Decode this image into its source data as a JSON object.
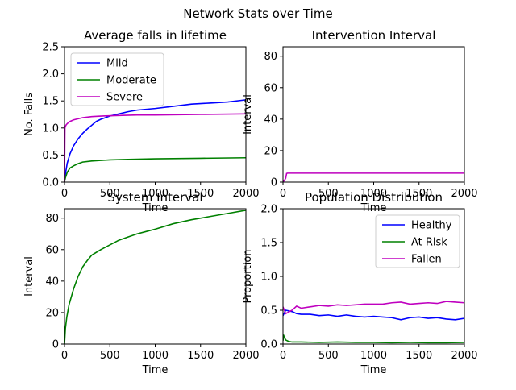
{
  "figure": {
    "title": "Network Stats over Time",
    "colors": {
      "mild": "#0000ff",
      "moderate": "#008000",
      "severe": "#bf00bf"
    }
  },
  "chart_data": [
    {
      "id": "falls",
      "type": "line",
      "title": "Average falls in lifetime",
      "xlabel": "Time",
      "ylabel": "No. Falls",
      "xlim": [
        0,
        2000
      ],
      "ylim": [
        0,
        2.5
      ],
      "xticks": [
        0,
        500,
        1000,
        1500,
        2000
      ],
      "yticks": [
        0.0,
        0.5,
        1.0,
        1.5,
        2.0,
        2.5
      ],
      "ytick_labels": [
        "0.0",
        "0.5",
        "1.0",
        "1.5",
        "2.0",
        "2.5"
      ],
      "legend": "top-left",
      "series": [
        {
          "name": "Mild",
          "color": "#0000ff",
          "x": [
            0,
            10,
            30,
            60,
            100,
            150,
            200,
            250,
            300,
            350,
            400,
            500,
            600,
            700,
            800,
            1000,
            1200,
            1400,
            1600,
            1800,
            2000
          ],
          "y": [
            0.0,
            0.15,
            0.35,
            0.52,
            0.67,
            0.8,
            0.9,
            0.98,
            1.05,
            1.12,
            1.16,
            1.22,
            1.26,
            1.3,
            1.33,
            1.36,
            1.4,
            1.44,
            1.46,
            1.48,
            1.52
          ]
        },
        {
          "name": "Moderate",
          "color": "#008000",
          "x": [
            0,
            10,
            30,
            60,
            100,
            150,
            200,
            300,
            400,
            500,
            700,
            1000,
            1500,
            2000
          ],
          "y": [
            0.0,
            0.08,
            0.18,
            0.26,
            0.3,
            0.34,
            0.37,
            0.39,
            0.4,
            0.41,
            0.42,
            0.43,
            0.44,
            0.45
          ]
        },
        {
          "name": "Severe",
          "color": "#bf00bf",
          "x": [
            0,
            5,
            15,
            30,
            60,
            100,
            200,
            300,
            400,
            600,
            800,
            1000,
            1500,
            2000
          ],
          "y": [
            0.0,
            1.0,
            1.05,
            1.08,
            1.12,
            1.15,
            1.19,
            1.21,
            1.22,
            1.23,
            1.24,
            1.24,
            1.25,
            1.26
          ]
        }
      ]
    },
    {
      "id": "intervention",
      "type": "line",
      "title": "Intervention Interval",
      "xlabel": "Time",
      "ylabel": "Interval",
      "xlim": [
        0,
        2000
      ],
      "ylim": [
        0,
        86
      ],
      "xticks": [
        0,
        500,
        1000,
        1500,
        2000
      ],
      "yticks": [
        0,
        20,
        40,
        60,
        80
      ],
      "series": [
        {
          "name": "",
          "color": "#bf00bf",
          "x": [
            0,
            20,
            30,
            40,
            50,
            2000
          ],
          "y": [
            0,
            1.5,
            2.5,
            5.5,
            5.7,
            5.7
          ]
        }
      ]
    },
    {
      "id": "system",
      "type": "line",
      "title": "System Interval",
      "xlabel": "Time",
      "ylabel": "Interval",
      "xlim": [
        0,
        2000
      ],
      "ylim": [
        0,
        86
      ],
      "xticks": [
        0,
        500,
        1000,
        1500,
        2000
      ],
      "yticks": [
        0,
        20,
        40,
        60,
        80
      ],
      "series": [
        {
          "name": "",
          "color": "#008000",
          "x": [
            0,
            10,
            25,
            50,
            100,
            150,
            200,
            250,
            300,
            400,
            500,
            600,
            700,
            800,
            900,
            1000,
            1200,
            1400,
            1600,
            1800,
            2000
          ],
          "y": [
            0,
            10,
            17,
            25,
            35,
            43,
            49,
            53,
            56.5,
            60,
            63,
            66,
            68,
            70,
            71.5,
            73,
            76.5,
            79,
            81,
            83,
            85
          ]
        }
      ]
    },
    {
      "id": "population",
      "type": "line",
      "title": "Population Distribution",
      "xlabel": "Time",
      "ylabel": "Proportion",
      "xlim": [
        0,
        2000
      ],
      "ylim": [
        0,
        2.0
      ],
      "xticks": [
        0,
        500,
        1000,
        1500,
        2000
      ],
      "yticks": [
        0.0,
        0.5,
        1.0,
        1.5,
        2.0
      ],
      "ytick_labels": [
        "0.0",
        "0.5",
        "1.0",
        "1.5",
        "2.0"
      ],
      "legend": "top-right",
      "series": [
        {
          "name": "Healthy",
          "color": "#0000ff",
          "x": [
            0,
            30,
            100,
            150,
            200,
            300,
            400,
            500,
            600,
            700,
            800,
            900,
            1000,
            1100,
            1200,
            1300,
            1400,
            1500,
            1600,
            1700,
            1800,
            1900,
            2000
          ],
          "y": [
            0.42,
            0.5,
            0.48,
            0.45,
            0.44,
            0.44,
            0.42,
            0.43,
            0.41,
            0.43,
            0.41,
            0.4,
            0.41,
            0.4,
            0.39,
            0.36,
            0.39,
            0.4,
            0.38,
            0.39,
            0.37,
            0.36,
            0.38
          ]
        },
        {
          "name": "At Risk",
          "color": "#008000",
          "x": [
            0,
            10,
            30,
            60,
            100,
            200,
            400,
            600,
            800,
            1000,
            1200,
            1400,
            1600,
            1800,
            2000
          ],
          "y": [
            0.05,
            0.12,
            0.06,
            0.04,
            0.03,
            0.03,
            0.025,
            0.03,
            0.025,
            0.025,
            0.02,
            0.025,
            0.02,
            0.02,
            0.025
          ]
        },
        {
          "name": "Fallen",
          "color": "#bf00bf",
          "x": [
            0,
            30,
            100,
            150,
            200,
            300,
            400,
            500,
            600,
            700,
            800,
            900,
            1000,
            1100,
            1200,
            1300,
            1400,
            1500,
            1600,
            1700,
            1800,
            1900,
            2000
          ],
          "y": [
            0.55,
            0.45,
            0.5,
            0.56,
            0.53,
            0.55,
            0.57,
            0.56,
            0.58,
            0.57,
            0.58,
            0.59,
            0.59,
            0.59,
            0.61,
            0.62,
            0.59,
            0.6,
            0.61,
            0.6,
            0.63,
            0.62,
            0.61
          ]
        }
      ]
    }
  ]
}
